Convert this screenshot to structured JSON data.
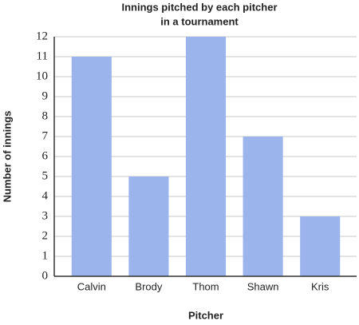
{
  "chart_data": {
    "type": "bar",
    "title": [
      "Innings pitched by each pitcher",
      "in a tournament"
    ],
    "x_label": "Pitcher",
    "y_label": "Number of innings",
    "categories": [
      "Calvin",
      "Brody",
      "Thom",
      "Shawn",
      "Kris"
    ],
    "values": [
      11,
      5,
      12,
      7,
      3
    ],
    "color": "#9bb5ec",
    "ylim": [
      0,
      12
    ],
    "yticks": [
      0,
      1,
      2,
      3,
      4,
      5,
      6,
      7,
      8,
      9,
      10,
      11,
      12
    ],
    "grid": true
  }
}
